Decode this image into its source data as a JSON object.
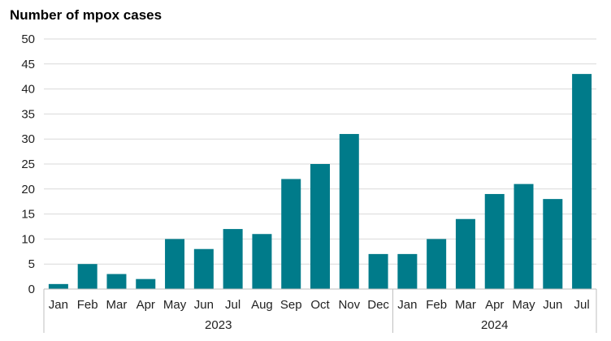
{
  "chart_data": {
    "type": "bar",
    "title": "Number of mpox cases",
    "xlabel": "",
    "ylabel": "",
    "ylim": [
      0,
      50
    ],
    "yticks": [
      "0",
      "5",
      "10",
      "15",
      "20",
      "25",
      "30",
      "35",
      "40",
      "45",
      "50"
    ],
    "grid": true,
    "bar_color": "#007B8A",
    "categories": [
      "Jan",
      "Feb",
      "Mar",
      "Apr",
      "May",
      "Jun",
      "Jul",
      "Aug",
      "Sep",
      "Oct",
      "Nov",
      "Dec",
      "Jan",
      "Feb",
      "Mar",
      "Apr",
      "May",
      "Jun",
      "Jul"
    ],
    "values": [
      1,
      5,
      3,
      2,
      10,
      8,
      12,
      11,
      22,
      25,
      31,
      7,
      7,
      10,
      14,
      19,
      21,
      18,
      43
    ],
    "groups": [
      {
        "label": "2023",
        "count": 12
      },
      {
        "label": "2024",
        "count": 7
      }
    ]
  }
}
